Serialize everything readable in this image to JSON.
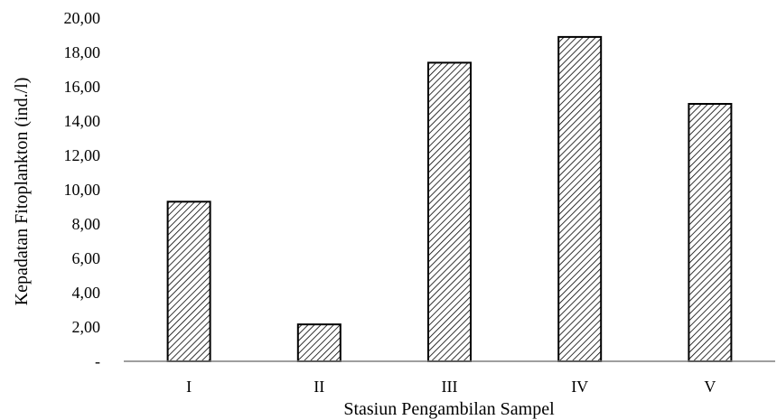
{
  "chart_data": {
    "type": "bar",
    "categories": [
      "I",
      "II",
      "III",
      "IV",
      "V"
    ],
    "values": [
      9.3,
      2.15,
      17.4,
      18.9,
      15.0
    ],
    "title": "",
    "xlabel": "Stasiun Pengambilan Sampel",
    "ylabel": "Kepadatan Fitoplankton (ind./l)",
    "ylim": [
      0,
      20
    ],
    "yticks": [
      "-",
      "2,00",
      "4,00",
      "6,00",
      "8,00",
      "10,00",
      "12,00",
      "14,00",
      "16,00",
      "18,00",
      "20,00"
    ],
    "bar_fill": "hatched",
    "bar_stroke_color": "#000000",
    "grid": false,
    "legend": "none"
  }
}
